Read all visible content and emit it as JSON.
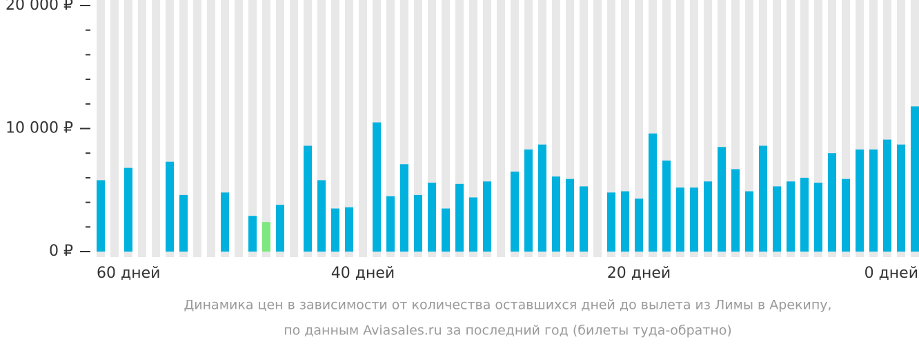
{
  "chart_data": {
    "type": "bar",
    "categories": [
      "60 дней",
      null,
      null,
      null,
      null,
      null,
      null,
      null,
      null,
      null,
      null,
      null,
      null,
      null,
      null,
      null,
      null,
      null,
      null,
      "40 дней",
      null,
      null,
      null,
      null,
      null,
      null,
      null,
      null,
      null,
      null,
      null,
      null,
      null,
      null,
      null,
      null,
      null,
      null,
      null,
      "20 дней",
      null,
      null,
      null,
      null,
      null,
      null,
      null,
      null,
      null,
      null,
      null,
      null,
      null,
      null,
      null,
      null,
      null,
      null,
      null,
      "0 дней"
    ],
    "values": [
      5800,
      null,
      6800,
      null,
      null,
      7300,
      4600,
      null,
      null,
      4800,
      null,
      2900,
      2400,
      3800,
      null,
      8600,
      5800,
      3500,
      3600,
      null,
      10500,
      4500,
      7100,
      4600,
      5600,
      3500,
      5500,
      4400,
      5700,
      null,
      6500,
      8300,
      8700,
      6100,
      5900,
      5300,
      null,
      4800,
      4900,
      4300,
      9600,
      7400,
      5200,
      5200,
      5700,
      8500,
      6700,
      4900,
      8600,
      5300,
      5700,
      6000,
      5600,
      8000,
      5900,
      8300,
      8300,
      9100,
      8700,
      11800
    ],
    "color": "#00b1de",
    "highlight_color": "#7de87f",
    "background_color": "#e8e8e8",
    "ylim": [
      0,
      20000
    ],
    "yticks": [
      {
        "value": 0,
        "label": "0 ₽"
      },
      {
        "value": 10000,
        "label": "10 000 ₽"
      },
      {
        "value": 20000,
        "label": "20 000 ₽"
      }
    ],
    "minor_yticks": [
      2000,
      4000,
      6000,
      8000,
      12000,
      14000,
      16000,
      18000
    ],
    "caption": [
      "Динамика цен в зависимости от количества оставшихся дней до вылета из Лимы в Арекипу,",
      "по данным Aviasales.ru за последний год (билеты туда-обратно)"
    ]
  }
}
